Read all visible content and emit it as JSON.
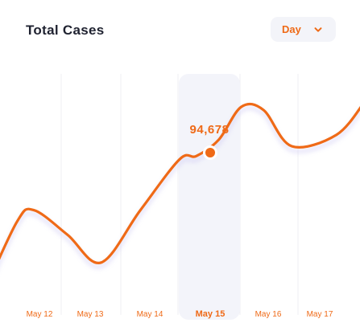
{
  "header": {
    "title": "Total Cases",
    "range_select": {
      "selected": "Day"
    }
  },
  "colors": {
    "accent": "#ef6a17",
    "highlight_band": "#f3f4fa",
    "gridline": "#efeff3",
    "title": "#1f2230"
  },
  "icons": {
    "dropdown": "chevron-down-icon"
  },
  "chart_data": {
    "type": "line",
    "categories": [
      "May 12",
      "May 13",
      "May 14",
      "May 15",
      "May 16",
      "May 17"
    ],
    "selected_category": "May 15",
    "highlight_value_label": "94,678",
    "highlight_value": 94678,
    "grid": "vertical",
    "series": [
      {
        "values": [
          [
            11.0,
            10000
          ],
          [
            11.6,
            54000
          ],
          [
            11.9,
            61000
          ],
          [
            12.5,
            46000
          ],
          [
            13.1,
            29000
          ],
          [
            13.8,
            61000
          ],
          [
            14.5,
            92000
          ],
          [
            14.8,
            94000
          ],
          [
            15.2,
            104000
          ],
          [
            15.6,
            124000
          ],
          [
            16.0,
            122000
          ],
          [
            16.5,
            100000
          ],
          [
            17.3,
            107000
          ],
          [
            17.8,
            127000
          ]
        ]
      }
    ]
  }
}
